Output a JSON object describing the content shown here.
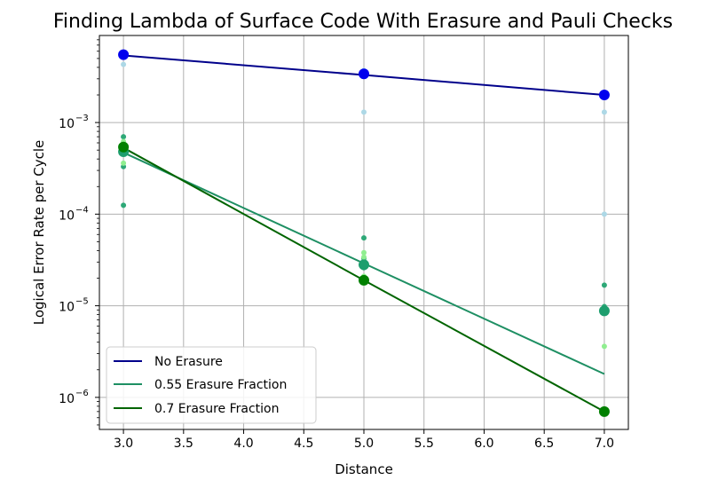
{
  "chart_data": {
    "type": "line",
    "title": "Finding Lambda of Surface Code With Erasure and Pauli Checks",
    "xlabel": "Distance",
    "ylabel": "Logical Error Rate per Cycle",
    "yscale": "log",
    "xlim": [
      2.8,
      7.2
    ],
    "ylim_log10": [
      -6.35,
      -2.05
    ],
    "x_ticks": [
      3.0,
      3.5,
      4.0,
      4.5,
      5.0,
      5.5,
      6.0,
      6.5,
      7.0
    ],
    "x_tick_labels": [
      "3.0",
      "3.5",
      "4.0",
      "4.5",
      "5.0",
      "5.5",
      "6.0",
      "6.5",
      "7.0"
    ],
    "y_ticks_exp": [
      -6,
      -5,
      -4,
      -3
    ],
    "grid": true,
    "legend_position": "lower-left",
    "series": [
      {
        "name": "No Erasure",
        "color": "#00008b",
        "marker_color": "#0000ee",
        "scatter_color": "#add8e6",
        "fit_x": [
          3,
          5,
          7
        ],
        "fit_y": [
          0.0054,
          0.0033,
          0.002
        ],
        "mean_x": [
          3,
          5,
          7
        ],
        "mean_y": [
          0.0055,
          0.0034,
          0.002
        ],
        "scatter": [
          [
            3,
            0.0043
          ],
          [
            3,
            0.0055
          ],
          [
            5,
            0.0037
          ],
          [
            5,
            0.0013
          ],
          [
            7,
            0.0013
          ],
          [
            7,
            0.0001
          ],
          [
            7,
            0.0021
          ]
        ]
      },
      {
        "name": "0.55 Erasure Fraction",
        "color": "#1e8f63",
        "marker_color": "#1e9e6e",
        "scatter_color": "#2ea877",
        "fit_x": [
          3,
          5,
          7
        ],
        "fit_y": [
          0.00047,
          2.9e-05,
          1.8e-06
        ],
        "mean_x": [
          3,
          5,
          7
        ],
        "mean_y": [
          0.00048,
          2.8e-05,
          8.8e-06
        ],
        "scatter": [
          [
            3,
            0.0007
          ],
          [
            3,
            0.00055
          ],
          [
            3,
            0.00033
          ],
          [
            3,
            0.000125
          ],
          [
            5,
            5.5e-05
          ],
          [
            5,
            3.3e-05
          ],
          [
            5,
            2.6e-05
          ],
          [
            7,
            1.68e-05
          ],
          [
            7,
            9.8e-06
          ],
          [
            7,
            8.5e-06
          ]
        ]
      },
      {
        "name": "0.7 Erasure Fraction",
        "color": "#006400",
        "marker_color": "#008000",
        "scatter_color": "#90ee90",
        "fit_x": [
          3,
          5,
          7
        ],
        "fit_y": [
          0.00053,
          1.9e-05,
          7e-07
        ],
        "mean_x": [
          3,
          5,
          7
        ],
        "mean_y": [
          0.00054,
          1.9e-05,
          7e-07
        ],
        "scatter": [
          [
            3,
            0.00062
          ],
          [
            3,
            0.00036
          ],
          [
            3,
            0.0005
          ],
          [
            5,
            3.8e-05
          ],
          [
            5,
            3.4e-05
          ],
          [
            5,
            2.1e-05
          ],
          [
            7,
            3.6e-06
          ],
          [
            7,
            9.3e-06
          ]
        ]
      }
    ]
  }
}
